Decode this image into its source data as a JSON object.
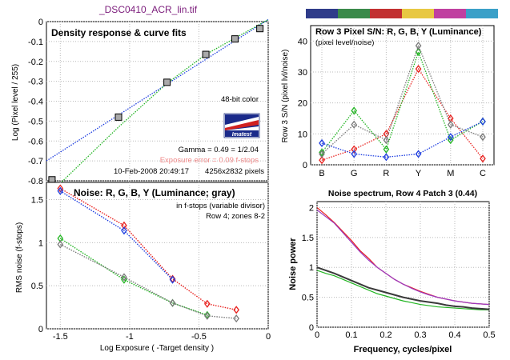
{
  "figure_title": "_DSC0410_ACR_lin.tif",
  "colors": {
    "red": "#e8211e",
    "green": "#22b522",
    "blue": "#1f3fe0",
    "gray": "#7a7a7a",
    "dark": "#3a3a3a",
    "magenta": "#9b3cc2",
    "pink_text": "#f08a8a"
  },
  "color_strip": [
    "#2f3c8a",
    "#3a8a4a",
    "#c23030",
    "#e8c842",
    "#c040a0",
    "#3aa0c8"
  ],
  "panel1": {
    "inner_title": "Density response & curve fits",
    "bit_depth": "48-bit color",
    "logo_text": "Imatest",
    "gamma_text": "Gamma = 0.49 = 1/2.04",
    "error_text": "Exposure error = 0.09 f-stops",
    "timestamp_text": "10-Feb-2008 20:49:17",
    "size_text": "4256x2832 pixels"
  },
  "panel2": {
    "title": "Row 3 Pixel S/N: R, G, B, Y (Luminance)",
    "subtitle": "(pixel level/noise)"
  },
  "panel3": {
    "inner_title": "Noise: R, G, B, Y (Luminance; gray)",
    "note1": "in f-stops (variable divisor)",
    "note2": "Row 4; zones 8-2"
  },
  "panel4": {
    "title": "Noise spectrum, Row 4 Patch 3 (0.44)"
  },
  "chart_data": [
    {
      "type": "scatter",
      "title": "Density response & curve fits",
      "xlabel": "",
      "ylabel": "Log (Pixel level / 255)",
      "xlim": [
        -1.6,
        0
      ],
      "ylim": [
        -0.8,
        0
      ],
      "xticks": [
        -1.5,
        -1,
        -0.5,
        0
      ],
      "xticklabels": [
        "",
        "",
        "",
        ""
      ],
      "yticks": [
        0,
        -0.1,
        -0.2,
        -0.3,
        -0.4,
        -0.5,
        -0.6,
        -0.7,
        -0.8
      ],
      "yticklabels": [
        "0",
        "-0.1",
        "-0.2",
        "-0.3",
        "-0.4",
        "-0.5",
        "-0.6",
        "-0.7",
        "-0.8"
      ],
      "points": {
        "x": [
          -1.56,
          -1.08,
          -0.73,
          -0.45,
          -0.24,
          -0.06
        ],
        "y": [
          -0.795,
          -0.48,
          -0.305,
          -0.165,
          -0.087,
          -0.035
        ]
      },
      "fits": [
        {
          "color": "blue",
          "x": [
            -1.6,
            0
          ],
          "y": [
            -0.7,
            0.01
          ]
        },
        {
          "color": "green",
          "x": [
            -1.6,
            -1.08,
            -0.73,
            -0.45,
            0
          ],
          "y": [
            -0.88,
            -0.53,
            -0.31,
            -0.165,
            0.01
          ]
        }
      ]
    },
    {
      "type": "line",
      "title": "Row 3 Pixel S/N: R, G, B, Y (Luminance)",
      "xlabel": "",
      "ylabel": "Row 3 S/N (pixel lvl/noise)",
      "categories": [
        "B",
        "G",
        "R",
        "Y",
        "M",
        "C"
      ],
      "ylim": [
        0,
        45
      ],
      "yticks": [
        0,
        10,
        20,
        30,
        40
      ],
      "series": [
        {
          "color": "red",
          "values": [
            1.5,
            5,
            10,
            31,
            15,
            2
          ]
        },
        {
          "color": "green",
          "values": [
            4,
            17.5,
            5,
            36.5,
            8,
            14
          ]
        },
        {
          "color": "blue",
          "values": [
            7,
            3.5,
            2.5,
            3.5,
            9,
            14
          ]
        },
        {
          "color": "gray",
          "values": [
            3.5,
            13,
            8,
            38.5,
            13,
            9
          ]
        }
      ]
    },
    {
      "type": "line",
      "title": "Noise: R, G, B, Y (Luminance; gray)",
      "xlabel": "Log Exposure ( -Target density )",
      "ylabel": "RMS noise (f-stops)",
      "xlim": [
        -1.6,
        0
      ],
      "ylim": [
        0,
        1.7
      ],
      "xticks": [
        -1.5,
        -1,
        -0.5,
        0
      ],
      "xticklabels": [
        "-1.5",
        "-1",
        "-0.5",
        "0"
      ],
      "yticks": [
        0,
        0.5,
        1,
        1.5
      ],
      "yticklabels": [
        "0",
        "0.5",
        "1",
        "1.5"
      ],
      "x": [
        -1.5,
        -1.04,
        -0.69,
        -0.44,
        -0.23
      ],
      "series": [
        {
          "color": "red",
          "values": [
            1.63,
            1.2,
            0.58,
            0.29,
            0.22
          ]
        },
        {
          "color": "blue",
          "values": [
            1.6,
            1.14,
            0.57,
            null,
            null
          ]
        },
        {
          "color": "green",
          "values": [
            1.05,
            0.57,
            0.3,
            0.16,
            null
          ]
        },
        {
          "color": "gray",
          "values": [
            0.98,
            0.6,
            0.3,
            0.15,
            0.12
          ]
        }
      ]
    },
    {
      "type": "line",
      "title": "Noise spectrum, Row 4 Patch 3 (0.44)",
      "xlabel": "Frequency, cycles/pixel",
      "ylabel": "Noise power",
      "xlim": [
        0,
        0.5
      ],
      "ylim": [
        0,
        2.1
      ],
      "xticks": [
        0,
        0.1,
        0.2,
        0.3,
        0.4,
        0.5
      ],
      "xticklabels": [
        "0",
        "0.1",
        "0.2",
        "0.3",
        "0.4",
        "0.5"
      ],
      "yticks": [
        0,
        0.5,
        1,
        1.5,
        2
      ],
      "yticklabels": [
        "0",
        "0.5",
        "1",
        "1.5",
        "2"
      ],
      "x": [
        0,
        0.025,
        0.05,
        0.075,
        0.1,
        0.125,
        0.15,
        0.175,
        0.2,
        0.225,
        0.25,
        0.275,
        0.3,
        0.325,
        0.35,
        0.375,
        0.4,
        0.425,
        0.45,
        0.475,
        0.5
      ],
      "series": [
        {
          "color": "red",
          "values": [
            2.0,
            1.88,
            1.75,
            1.6,
            1.45,
            1.28,
            1.15,
            1.0,
            0.9,
            0.8,
            0.72,
            0.66,
            0.6,
            0.55,
            0.5,
            0.47,
            0.44,
            0.42,
            0.4,
            0.39,
            0.38
          ]
        },
        {
          "color": "magenta",
          "values": [
            1.96,
            1.85,
            1.74,
            1.58,
            1.42,
            1.26,
            1.12,
            1.0,
            0.9,
            0.8,
            0.72,
            0.65,
            0.59,
            0.54,
            0.5,
            0.47,
            0.44,
            0.42,
            0.4,
            0.39,
            0.38
          ]
        },
        {
          "color": "green",
          "values": [
            0.95,
            0.9,
            0.86,
            0.8,
            0.74,
            0.68,
            0.62,
            0.56,
            0.52,
            0.48,
            0.44,
            0.41,
            0.38,
            0.36,
            0.34,
            0.33,
            0.32,
            0.31,
            0.3,
            0.29,
            0.29
          ]
        },
        {
          "color": "dark",
          "values": [
            1.0,
            0.95,
            0.9,
            0.84,
            0.78,
            0.72,
            0.66,
            0.62,
            0.58,
            0.54,
            0.5,
            0.47,
            0.44,
            0.42,
            0.4,
            0.37,
            0.35,
            0.34,
            0.32,
            0.31,
            0.3
          ]
        }
      ]
    }
  ]
}
